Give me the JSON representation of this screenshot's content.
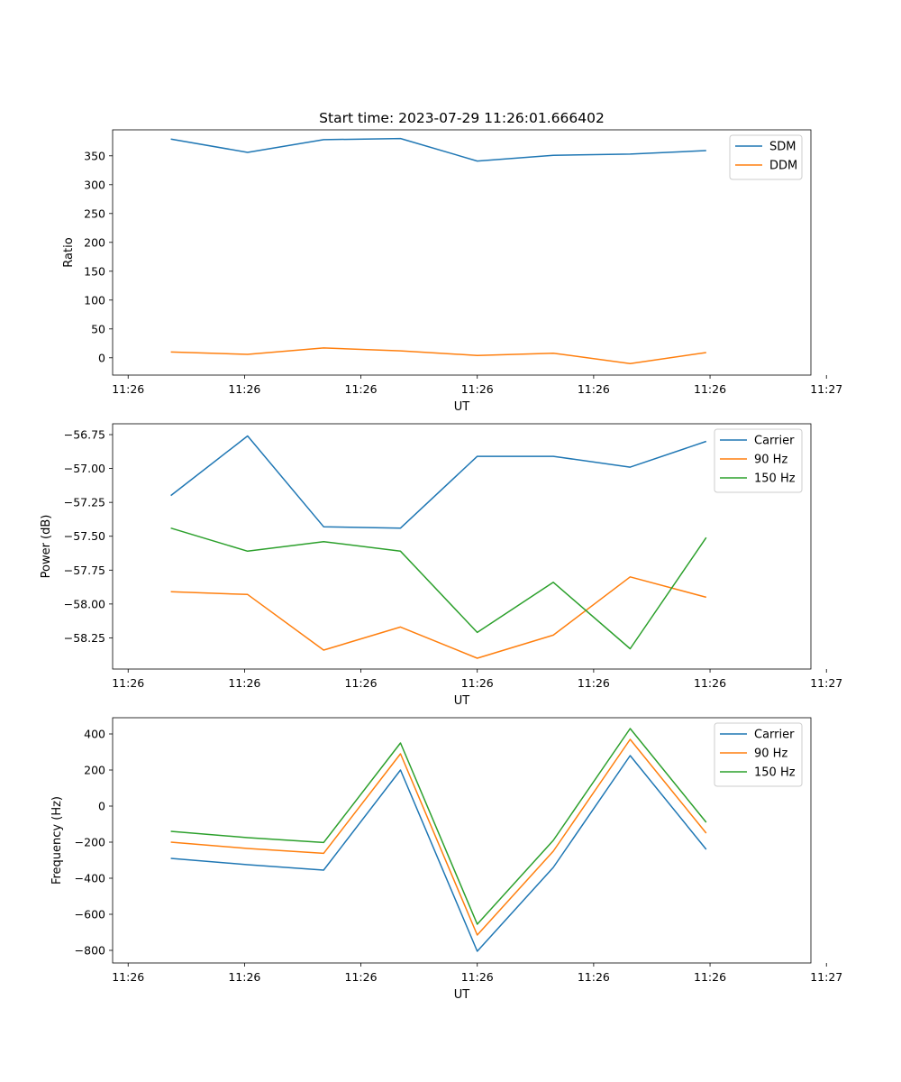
{
  "title": "Start time: 2023-07-29 11:26:01.666402",
  "colors": {
    "blue": "#1f77b4",
    "orange": "#ff7f0e",
    "green": "#2ca02c"
  },
  "chart_data": [
    {
      "type": "line",
      "xlabel": "UT",
      "ylabel": "Ratio",
      "xlim": [
        -0.5,
        8.5
      ],
      "ylim": [
        -30,
        395
      ],
      "x_tick_positions": [
        -0.3,
        1.2,
        2.7,
        4.2,
        5.7,
        7.2,
        8.7
      ],
      "x_tick_labels": [
        "11:26",
        "11:26",
        "11:26",
        "11:26",
        "11:26",
        "11:26",
        "11:27"
      ],
      "y_ticks": [
        0,
        50,
        100,
        150,
        200,
        250,
        300,
        350
      ],
      "y_tick_labels": [
        "0",
        "50",
        "100",
        "150",
        "200",
        "250",
        "300",
        "350"
      ],
      "x": [
        0.25,
        1.24,
        2.22,
        3.21,
        4.2,
        5.18,
        6.17,
        7.15
      ],
      "series": [
        {
          "name": "SDM",
          "color": "#1f77b4",
          "values": [
            379,
            356,
            378,
            380,
            341,
            351,
            353,
            359
          ]
        },
        {
          "name": "DDM",
          "color": "#ff7f0e",
          "values": [
            10,
            6,
            17,
            12,
            4,
            8,
            -10,
            9
          ]
        }
      ],
      "legend_position": "upper right"
    },
    {
      "type": "line",
      "xlabel": "UT",
      "ylabel": "Power (dB)",
      "xlim": [
        -0.5,
        8.5
      ],
      "ylim": [
        -58.48,
        -56.67
      ],
      "x_tick_positions": [
        -0.3,
        1.2,
        2.7,
        4.2,
        5.7,
        7.2,
        8.7
      ],
      "x_tick_labels": [
        "11:26",
        "11:26",
        "11:26",
        "11:26",
        "11:26",
        "11:26",
        "11:27"
      ],
      "y_ticks": [
        -58.25,
        -58.0,
        -57.75,
        -57.5,
        -57.25,
        -57.0,
        -56.75
      ],
      "y_tick_labels": [
        "−58.25",
        "−58.00",
        "−57.75",
        "−57.50",
        "−57.25",
        "−57.00",
        "−56.75"
      ],
      "x": [
        0.25,
        1.24,
        2.22,
        3.21,
        4.2,
        5.18,
        6.17,
        7.15
      ],
      "series": [
        {
          "name": "Carrier",
          "color": "#1f77b4",
          "values": [
            -57.2,
            -56.76,
            -57.43,
            -57.44,
            -56.91,
            -56.91,
            -56.99,
            -56.8
          ]
        },
        {
          "name": "90 Hz",
          "color": "#ff7f0e",
          "values": [
            -57.91,
            -57.93,
            -58.34,
            -58.17,
            -58.4,
            -58.23,
            -57.8,
            -57.95
          ]
        },
        {
          "name": "150 Hz",
          "color": "#2ca02c",
          "values": [
            -57.44,
            -57.61,
            -57.54,
            -57.61,
            -58.21,
            -57.84,
            -58.33,
            -57.51
          ]
        }
      ],
      "legend_position": "upper right"
    },
    {
      "type": "line",
      "xlabel": "UT",
      "ylabel": "Frequency (Hz)",
      "xlim": [
        -0.5,
        8.5
      ],
      "ylim": [
        -870,
        490
      ],
      "x_tick_positions": [
        -0.3,
        1.2,
        2.7,
        4.2,
        5.7,
        7.2,
        8.7
      ],
      "x_tick_labels": [
        "11:26",
        "11:26",
        "11:26",
        "11:26",
        "11:26",
        "11:26",
        "11:27"
      ],
      "y_ticks": [
        -800,
        -600,
        -400,
        -200,
        0,
        200,
        400
      ],
      "y_tick_labels": [
        "−800",
        "−600",
        "−400",
        "−200",
        "0",
        "200",
        "400"
      ],
      "x": [
        0.25,
        1.24,
        2.22,
        3.21,
        4.2,
        5.18,
        6.17,
        7.15
      ],
      "series": [
        {
          "name": "Carrier",
          "color": "#1f77b4",
          "values": [
            -290,
            -325,
            -355,
            200,
            -805,
            -340,
            280,
            -240
          ]
        },
        {
          "name": "90 Hz",
          "color": "#ff7f0e",
          "values": [
            -200,
            -235,
            -262,
            290,
            -715,
            -250,
            370,
            -150
          ]
        },
        {
          "name": "150 Hz",
          "color": "#2ca02c",
          "values": [
            -140,
            -175,
            -202,
            350,
            -655,
            -190,
            430,
            -90
          ]
        }
      ],
      "legend_position": "upper right"
    }
  ]
}
